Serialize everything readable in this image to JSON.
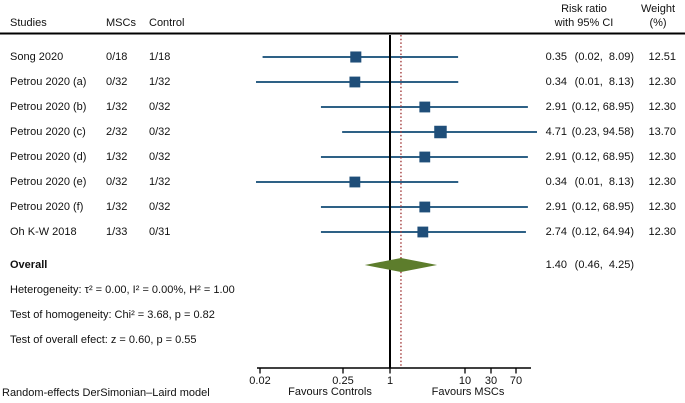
{
  "header": {
    "studies": "Studies",
    "mscs": "MSCs",
    "control": "Control",
    "risk_ratio_line1": "Risk ratio",
    "risk_ratio_line2": "with 95% CI",
    "weight_line1": "Weight",
    "weight_line2": "(%)"
  },
  "chart_data": {
    "type": "forest",
    "x_scale": "log",
    "x_ticks": [
      {
        "value": 0.02,
        "label": "0.02"
      },
      {
        "value": 0.25,
        "label": "0.25"
      },
      {
        "value": 1,
        "label": "1"
      },
      {
        "value": 10,
        "label": "10"
      },
      {
        "value": 30,
        "label": "30"
      },
      {
        "value": 70,
        "label": "70"
      }
    ],
    "null_line_value": 1,
    "overall_line_value": 1.4,
    "rows": [
      {
        "study": "Song 2020",
        "mscs": "0/18",
        "control": "1/18",
        "est": 0.35,
        "lo": 0.02,
        "hi": 8.09,
        "rr_text": "0.35",
        "ci_text": "(0.02,  8.09)",
        "weight_text": "12.51",
        "weight": 12.51
      },
      {
        "study": "Petrou 2020 (a)",
        "mscs": "0/32",
        "control": "1/32",
        "est": 0.34,
        "lo": 0.01,
        "hi": 8.13,
        "rr_text": "0.34",
        "ci_text": "(0.01,  8.13)",
        "weight_text": "12.30",
        "weight": 12.3
      },
      {
        "study": "Petrou 2020 (b)",
        "mscs": "1/32",
        "control": "0/32",
        "est": 2.91,
        "lo": 0.12,
        "hi": 68.95,
        "rr_text": "2.91",
        "ci_text": "(0.12, 68.95)",
        "weight_text": "12.30",
        "weight": 12.3
      },
      {
        "study": "Petrou 2020 (c)",
        "mscs": "2/32",
        "control": "0/32",
        "est": 4.71,
        "lo": 0.23,
        "hi": 94.58,
        "rr_text": "4.71",
        "ci_text": "(0.23, 94.58)",
        "weight_text": "13.70",
        "weight": 13.7
      },
      {
        "study": "Petrou 2020 (d)",
        "mscs": "1/32",
        "control": "0/32",
        "est": 2.91,
        "lo": 0.12,
        "hi": 68.95,
        "rr_text": "2.91",
        "ci_text": "(0.12, 68.95)",
        "weight_text": "12.30",
        "weight": 12.3
      },
      {
        "study": "Petrou 2020 (e)",
        "mscs": "0/32",
        "control": "1/32",
        "est": 0.34,
        "lo": 0.01,
        "hi": 8.13,
        "rr_text": "0.34",
        "ci_text": "(0.01,  8.13)",
        "weight_text": "12.30",
        "weight": 12.3
      },
      {
        "study": "Petrou 2020 (f)",
        "mscs": "1/32",
        "control": "0/32",
        "est": 2.91,
        "lo": 0.12,
        "hi": 68.95,
        "rr_text": "2.91",
        "ci_text": "(0.12, 68.95)",
        "weight_text": "12.30",
        "weight": 12.3
      },
      {
        "study": "Oh K-W 2018",
        "mscs": "1/33",
        "control": "0/31",
        "est": 2.74,
        "lo": 0.12,
        "hi": 64.94,
        "rr_text": "2.74",
        "ci_text": "(0.12, 64.94)",
        "weight_text": "12.30",
        "weight": 12.3
      }
    ],
    "overall": {
      "label": "Overall",
      "est": 1.4,
      "lo": 0.46,
      "hi": 4.25,
      "rr_text": "1.40",
      "ci_text": "(0.46,  4.25)"
    },
    "favours_left": "Favours Controls",
    "favours_right": "Favours MSCs"
  },
  "stats": {
    "heterogeneity": "Heterogeneity: τ² = 0.00, I² = 0.00%, H² = 1.00",
    "homogeneity": "Test of homogeneity: Chi² = 3.68, p = 0.82",
    "overall_effect": "Test of overall efect: z = 0.60, p = 0.55"
  },
  "footnote": "Random-effects DerSimonian–Laird model",
  "colors": {
    "ci_line": "#2e6186",
    "square": "#1f4e79",
    "diamond": "#5d7d2c",
    "null_line": "#000000",
    "overall_dotted": "#a33c3c",
    "text": "#111111",
    "rule": "#000000"
  }
}
